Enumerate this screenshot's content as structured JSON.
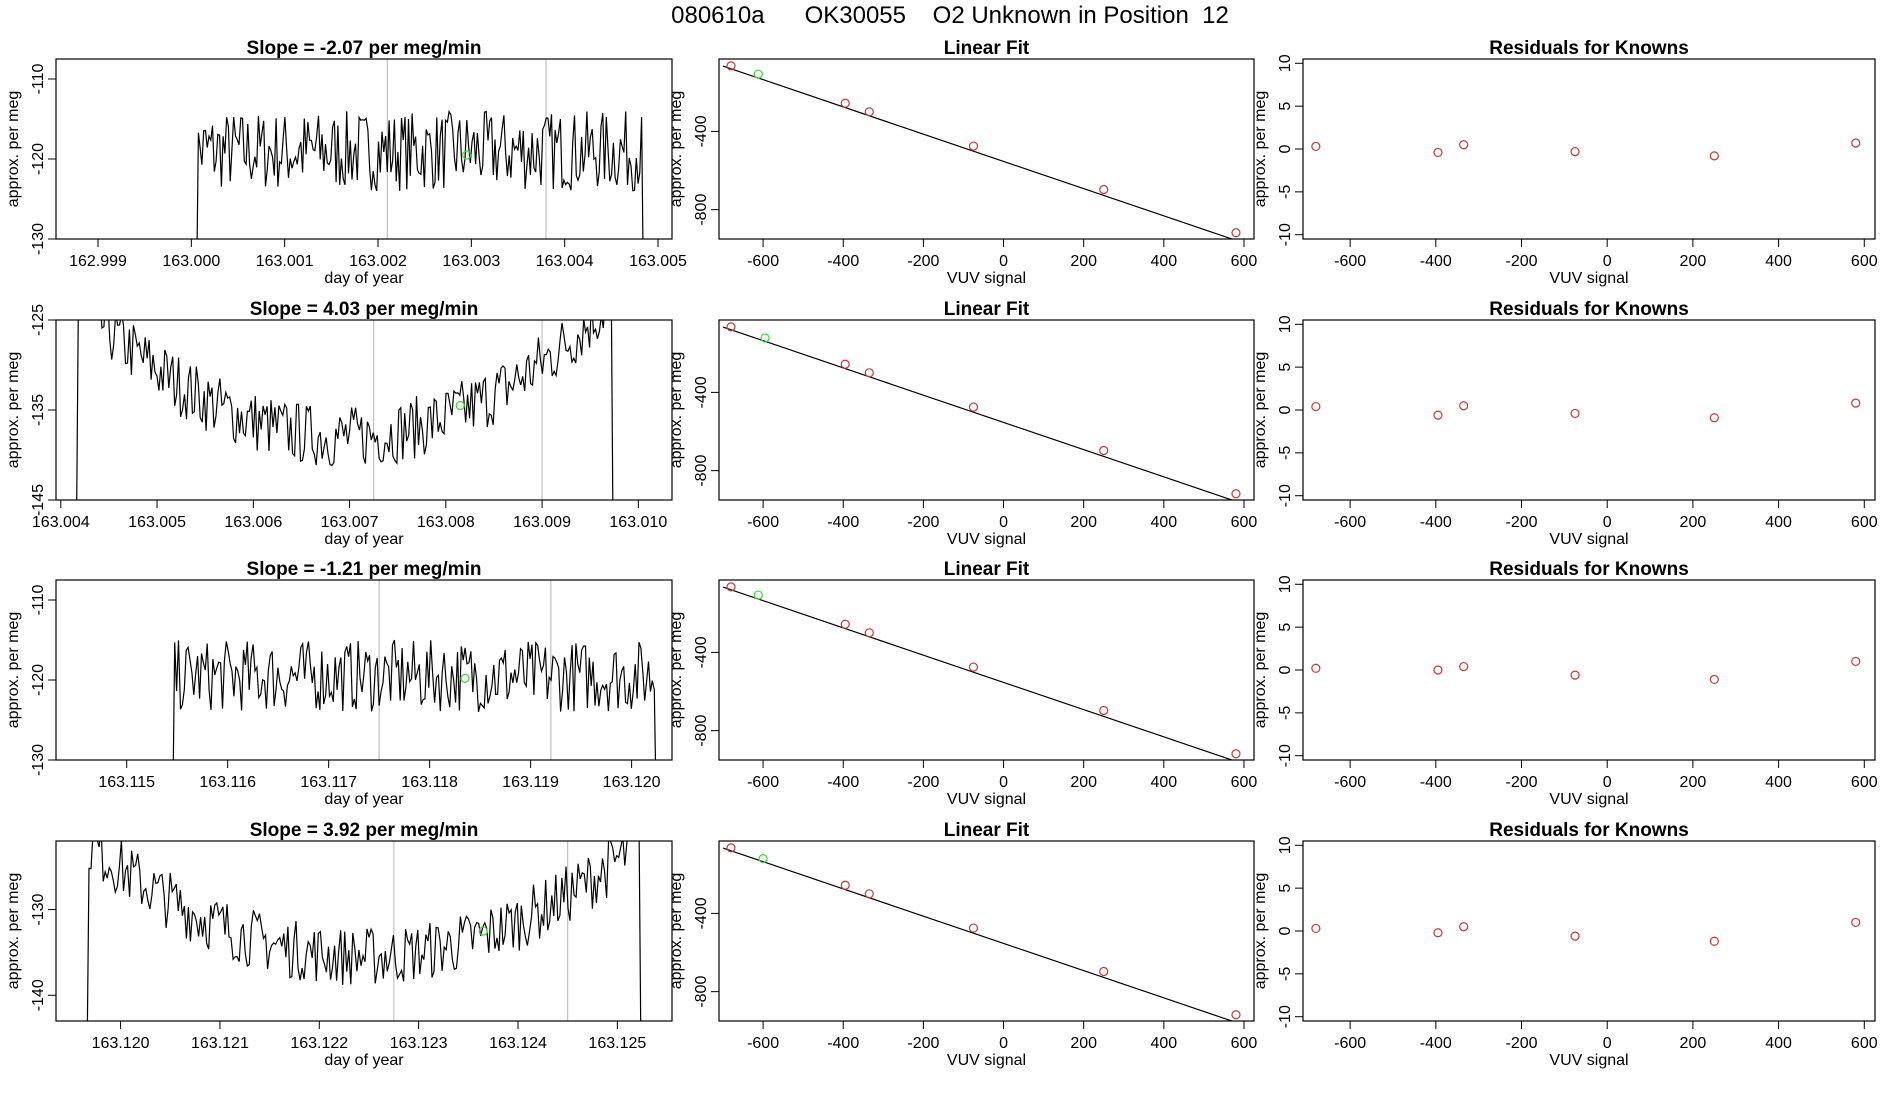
{
  "page": {
    "title": "080610a      OK30055    O2 Unknown in Position  12"
  },
  "colors": {
    "series": "#000000",
    "marker_known": "#cc3333",
    "marker_unknown": "#33dd33",
    "vline": "#c0c0c0",
    "frame": "#000000"
  },
  "chart_data": [
    {
      "type": "line",
      "name": "ts-1",
      "title": "Slope =  -2.07  per meg/min",
      "xlabel": "day of year",
      "ylabel": "approx. per meg",
      "xlim": [
        162.99855,
        163.00515
      ],
      "ylim": [
        -130,
        -107.5
      ],
      "xticks": [
        "162.999",
        "163.000",
        "163.001",
        "163.002",
        "163.003",
        "163.004",
        "163.005"
      ],
      "yticks": [
        "-130",
        "-120",
        "-110"
      ],
      "start": 163.0,
      "end": 163.0049,
      "n": 260,
      "base": -119.0,
      "amp": 5.0,
      "curve": 0,
      "vlines": [
        163.0021,
        163.0038
      ],
      "unknown_point": [
        163.00295,
        -119.5
      ]
    },
    {
      "type": "line",
      "name": "ts-2",
      "title": "Slope =  4.03  per meg/min",
      "xlabel": "day of year",
      "ylabel": "approx. per meg",
      "xticks": [
        "163.004",
        "163.005",
        "163.006",
        "163.007",
        "163.008",
        "163.009",
        "163.010"
      ],
      "yticks": [
        "-145",
        "-135",
        "-125"
      ],
      "xlim": [
        163.00395,
        163.01035
      ],
      "ylim": [
        -145,
        -125
      ],
      "start": 163.0041,
      "end": 163.0098,
      "n": 280,
      "base": -138.0,
      "amp": 3.5,
      "curve": 16,
      "vlines": [
        163.00725,
        163.009
      ],
      "unknown_point": [
        163.00815,
        -134.5
      ]
    },
    {
      "type": "line",
      "name": "ts-3",
      "title": "Slope =  -1.21  per meg/min",
      "xlabel": "day of year",
      "ylabel": "approx. per meg",
      "xticks": [
        "163.115",
        "163.116",
        "163.117",
        "163.118",
        "163.119",
        "163.120"
      ],
      "yticks": [
        "-130",
        "-120",
        "-110"
      ],
      "xlim": [
        163.1143,
        163.1204
      ],
      "ylim": [
        -130,
        -107.5
      ],
      "start": 163.1154,
      "end": 163.1203,
      "n": 260,
      "base": -119.5,
      "amp": 4.5,
      "curve": 0,
      "vlines": [
        163.1175,
        163.1192
      ],
      "unknown_point": [
        163.11835,
        -119.8
      ]
    },
    {
      "type": "line",
      "name": "ts-4",
      "title": "Slope =  3.92  per meg/min",
      "xlabel": "day of year",
      "ylabel": "approx. per meg",
      "xticks": [
        "163.120",
        "163.121",
        "163.122",
        "163.123",
        "163.124",
        "163.125"
      ],
      "yticks": [
        "-140",
        "-130"
      ],
      "xlim": [
        163.11935,
        163.12555
      ],
      "ylim": [
        -143,
        -122
      ],
      "start": 163.1196,
      "end": 163.1253,
      "n": 280,
      "base": -135.5,
      "amp": 3.5,
      "curve": 14,
      "vlines": [
        163.12275,
        163.1245
      ],
      "unknown_point": [
        163.12365,
        -132.5
      ]
    },
    {
      "type": "scatter",
      "name": "fit-1",
      "title": "Linear Fit",
      "xlabel": "VUV signal",
      "ylabel": "approx. per meg",
      "xlim": [
        -710,
        625
      ],
      "ylim": [
        -950,
        -30
      ],
      "xticks": [
        "-600",
        "-400",
        "-200",
        "0",
        "200",
        "400",
        "600"
      ],
      "yticks": [
        "-800",
        "-400"
      ],
      "fit_line": [
        [
          -700,
          -66
        ],
        [
          620,
          -985
        ]
      ],
      "known_x": [
        -680,
        -395,
        -335,
        -75,
        250,
        580
      ],
      "known_y": [
        -65,
        -256,
        -300,
        -475,
        -697,
        -918
      ],
      "unknown_point": [
        -612,
        -107
      ]
    },
    {
      "type": "scatter",
      "name": "fit-2",
      "title": "Linear Fit",
      "xlabel": "VUV signal",
      "ylabel": "approx. per meg",
      "xlim": [
        -710,
        625
      ],
      "ylim": [
        -950,
        -30
      ],
      "xticks": [
        "-600",
        "-400",
        "-200",
        "0",
        "200",
        "400",
        "600"
      ],
      "yticks": [
        "-800",
        "-400"
      ],
      "fit_line": [
        [
          -700,
          -66
        ],
        [
          620,
          -985
        ]
      ],
      "known_x": [
        -680,
        -395,
        -335,
        -75,
        250,
        580
      ],
      "known_y": [
        -65,
        -256,
        -300,
        -475,
        -697,
        -918
      ],
      "unknown_point": [
        -595,
        -122
      ]
    },
    {
      "type": "scatter",
      "name": "fit-3",
      "title": "Linear Fit",
      "xlabel": "VUV signal",
      "ylabel": "approx. per meg",
      "xlim": [
        -710,
        625
      ],
      "ylim": [
        -950,
        -30
      ],
      "xticks": [
        "-600",
        "-400",
        "-200",
        "0",
        "200",
        "400",
        "600"
      ],
      "yticks": [
        "-800",
        "-400"
      ],
      "fit_line": [
        [
          -700,
          -66
        ],
        [
          620,
          -985
        ]
      ],
      "known_x": [
        -680,
        -395,
        -335,
        -75,
        250,
        580
      ],
      "known_y": [
        -65,
        -256,
        -300,
        -475,
        -697,
        -918
      ],
      "unknown_point": [
        -612,
        -107
      ]
    },
    {
      "type": "scatter",
      "name": "fit-4",
      "title": "Linear Fit",
      "xlabel": "VUV signal",
      "ylabel": "approx. per meg",
      "xlim": [
        -710,
        625
      ],
      "ylim": [
        -950,
        -30
      ],
      "xticks": [
        "-600",
        "-400",
        "-200",
        "0",
        "200",
        "400",
        "600"
      ],
      "yticks": [
        "-800",
        "-400"
      ],
      "fit_line": [
        [
          -700,
          -66
        ],
        [
          620,
          -985
        ]
      ],
      "known_x": [
        -680,
        -395,
        -335,
        -75,
        250,
        580
      ],
      "known_y": [
        -65,
        -256,
        -300,
        -475,
        -697,
        -918
      ],
      "unknown_point": [
        -600,
        -120
      ]
    },
    {
      "type": "scatter",
      "name": "res-1",
      "title": "Residuals for Knowns",
      "xlabel": "VUV signal",
      "ylabel": "approx. per meg",
      "xlim": [
        -710,
        625
      ],
      "ylim": [
        -10.5,
        10.5
      ],
      "xticks": [
        "-600",
        "-400",
        "-200",
        "0",
        "200",
        "400",
        "600"
      ],
      "yticks": [
        "-10",
        "-5",
        "0",
        "5",
        "10"
      ],
      "known_x": [
        -680,
        -395,
        -335,
        -75,
        250,
        580
      ],
      "known_y": [
        0.3,
        -0.4,
        0.5,
        -0.3,
        -0.8,
        0.7
      ]
    },
    {
      "type": "scatter",
      "name": "res-2",
      "title": "Residuals for Knowns",
      "xlabel": "VUV signal",
      "ylabel": "approx. per meg",
      "xlim": [
        -710,
        625
      ],
      "ylim": [
        -10.5,
        10.5
      ],
      "xticks": [
        "-600",
        "-400",
        "-200",
        "0",
        "200",
        "400",
        "600"
      ],
      "yticks": [
        "-10",
        "-5",
        "0",
        "5",
        "10"
      ],
      "known_x": [
        -680,
        -395,
        -335,
        -75,
        250,
        580
      ],
      "known_y": [
        0.4,
        -0.6,
        0.5,
        -0.4,
        -0.9,
        0.8
      ]
    },
    {
      "type": "scatter",
      "name": "res-3",
      "title": "Residuals for Knowns",
      "xlabel": "VUV signal",
      "ylabel": "approx. per meg",
      "xlim": [
        -710,
        625
      ],
      "ylim": [
        -10.5,
        10.5
      ],
      "xticks": [
        "-600",
        "-400",
        "-200",
        "0",
        "200",
        "400",
        "600"
      ],
      "yticks": [
        "-10",
        "-5",
        "0",
        "5",
        "10"
      ],
      "known_x": [
        -680,
        -395,
        -335,
        -75,
        250,
        580
      ],
      "known_y": [
        0.2,
        0.0,
        0.4,
        -0.6,
        -1.1,
        1.0
      ]
    },
    {
      "type": "scatter",
      "name": "res-4",
      "title": "Residuals for Knowns",
      "xlabel": "VUV signal",
      "ylabel": "approx. per meg",
      "xlim": [
        -710,
        625
      ],
      "ylim": [
        -10.5,
        10.5
      ],
      "xticks": [
        "-600",
        "-400",
        "-200",
        "0",
        "200",
        "400",
        "600"
      ],
      "yticks": [
        "-10",
        "-5",
        "0",
        "5",
        "10"
      ],
      "known_x": [
        -680,
        -395,
        -335,
        -75,
        250,
        580
      ],
      "known_y": [
        0.3,
        -0.2,
        0.5,
        -0.6,
        -1.2,
        1.0
      ]
    }
  ]
}
